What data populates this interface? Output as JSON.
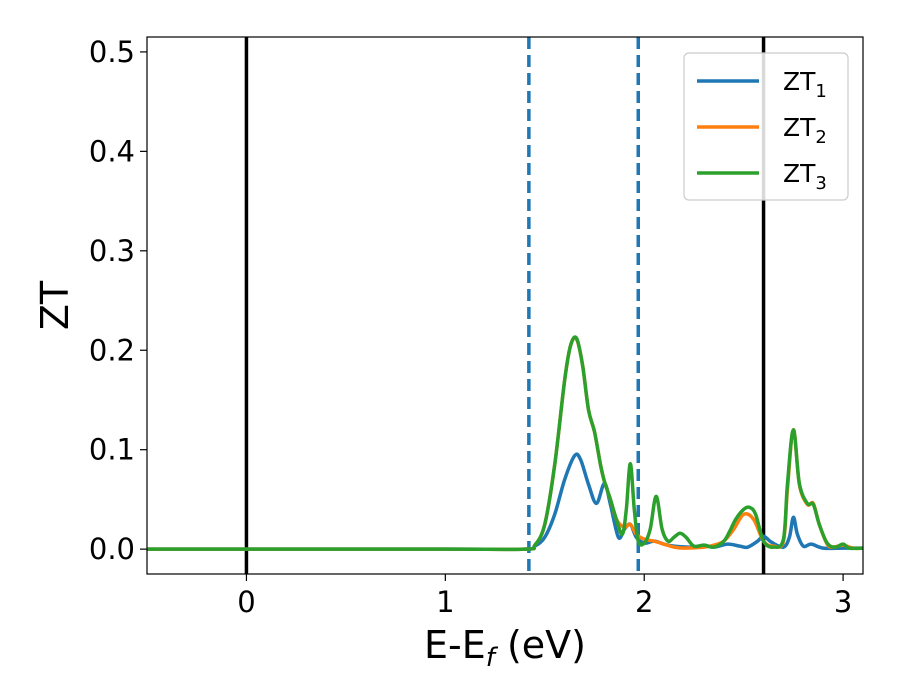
{
  "chart_data": {
    "type": "line",
    "xlabel": "E-E",
    "xlabel_sub": "f",
    "xlabel_unit": " (eV)",
    "ylabel": "ZT",
    "xlim": [
      -0.5,
      3.1
    ],
    "ylim": [
      -0.025,
      0.515
    ],
    "xticks": [
      0,
      1,
      2,
      3
    ],
    "xtick_labels": [
      "0",
      "1",
      "2",
      "3"
    ],
    "yticks": [
      0.0,
      0.1,
      0.2,
      0.3,
      0.4,
      0.5
    ],
    "ytick_labels": [
      "0.0",
      "0.1",
      "0.2",
      "0.3",
      "0.4",
      "0.5"
    ],
    "grid": false,
    "legend_position": "top-right",
    "vertical_lines": [
      {
        "x": 0.0,
        "style": "solid",
        "color": "#000000"
      },
      {
        "x": 1.42,
        "style": "dashed",
        "color": "#1f77b4"
      },
      {
        "x": 1.97,
        "style": "dashed",
        "color": "#1f77b4"
      },
      {
        "x": 2.6,
        "style": "solid",
        "color": "#000000"
      }
    ],
    "series": [
      {
        "name": "ZT",
        "subscript": "1",
        "color": "#1f77b4",
        "points": [
          [
            -0.5,
            0
          ],
          [
            1.0,
            0
          ],
          [
            1.4,
            0
          ],
          [
            1.45,
            0.003
          ],
          [
            1.5,
            0.012
          ],
          [
            1.55,
            0.035
          ],
          [
            1.6,
            0.07
          ],
          [
            1.65,
            0.094
          ],
          [
            1.68,
            0.09
          ],
          [
            1.72,
            0.065
          ],
          [
            1.76,
            0.046
          ],
          [
            1.8,
            0.066
          ],
          [
            1.83,
            0.045
          ],
          [
            1.87,
            0.012
          ],
          [
            1.9,
            0.02
          ],
          [
            1.93,
            0.025
          ],
          [
            1.96,
            0.012
          ],
          [
            2.0,
            0.006
          ],
          [
            2.05,
            0.008
          ],
          [
            2.1,
            0.005
          ],
          [
            2.15,
            0.003
          ],
          [
            2.25,
            0.002
          ],
          [
            2.3,
            0.004
          ],
          [
            2.35,
            0.002
          ],
          [
            2.42,
            0.005
          ],
          [
            2.48,
            0.003
          ],
          [
            2.52,
            0.002
          ],
          [
            2.57,
            0.008
          ],
          [
            2.6,
            0.013
          ],
          [
            2.64,
            0.007
          ],
          [
            2.7,
            0.002
          ],
          [
            2.73,
            0.012
          ],
          [
            2.75,
            0.032
          ],
          [
            2.77,
            0.015
          ],
          [
            2.8,
            0.003
          ],
          [
            2.84,
            0.005
          ],
          [
            2.9,
            0.001
          ],
          [
            3.0,
            0.001
          ],
          [
            3.1,
            0.001
          ]
        ]
      },
      {
        "name": "ZT",
        "subscript": "2",
        "color": "#ff7f0e",
        "points": [
          [
            -0.5,
            0
          ],
          [
            1.0,
            0
          ],
          [
            1.4,
            0
          ],
          [
            1.45,
            0.004
          ],
          [
            1.5,
            0.025
          ],
          [
            1.55,
            0.085
          ],
          [
            1.6,
            0.17
          ],
          [
            1.63,
            0.205
          ],
          [
            1.66,
            0.211
          ],
          [
            1.69,
            0.185
          ],
          [
            1.72,
            0.14
          ],
          [
            1.75,
            0.118
          ],
          [
            1.78,
            0.085
          ],
          [
            1.8,
            0.068
          ],
          [
            1.83,
            0.05
          ],
          [
            1.86,
            0.03
          ],
          [
            1.9,
            0.022
          ],
          [
            1.93,
            0.025
          ],
          [
            1.96,
            0.015
          ],
          [
            2.0,
            0.01
          ],
          [
            2.05,
            0.008
          ],
          [
            2.1,
            0.005
          ],
          [
            2.15,
            0.002
          ],
          [
            2.2,
            0.001
          ],
          [
            2.3,
            0.002
          ],
          [
            2.35,
            0.004
          ],
          [
            2.4,
            0.008
          ],
          [
            2.45,
            0.02
          ],
          [
            2.5,
            0.035
          ],
          [
            2.55,
            0.03
          ],
          [
            2.6,
            0.008
          ],
          [
            2.65,
            0.003
          ],
          [
            2.7,
            0.008
          ],
          [
            2.72,
            0.06
          ],
          [
            2.75,
            0.12
          ],
          [
            2.78,
            0.065
          ],
          [
            2.82,
            0.045
          ],
          [
            2.85,
            0.046
          ],
          [
            2.88,
            0.025
          ],
          [
            2.92,
            0.005
          ],
          [
            2.95,
            0.002
          ],
          [
            3.0,
            0.004
          ],
          [
            3.05,
            0.001
          ],
          [
            3.1,
            0.001
          ]
        ]
      },
      {
        "name": "ZT",
        "subscript": "3",
        "color": "#2ca02c",
        "points": [
          [
            -0.5,
            0
          ],
          [
            1.0,
            0
          ],
          [
            1.4,
            0
          ],
          [
            1.45,
            0.004
          ],
          [
            1.5,
            0.025
          ],
          [
            1.55,
            0.085
          ],
          [
            1.6,
            0.17
          ],
          [
            1.63,
            0.205
          ],
          [
            1.66,
            0.212
          ],
          [
            1.69,
            0.185
          ],
          [
            1.72,
            0.14
          ],
          [
            1.75,
            0.118
          ],
          [
            1.78,
            0.085
          ],
          [
            1.8,
            0.068
          ],
          [
            1.83,
            0.05
          ],
          [
            1.86,
            0.03
          ],
          [
            1.89,
            0.015
          ],
          [
            1.91,
            0.04
          ],
          [
            1.93,
            0.086
          ],
          [
            1.95,
            0.04
          ],
          [
            1.97,
            0.008
          ],
          [
            2.0,
            0.006
          ],
          [
            2.03,
            0.02
          ],
          [
            2.06,
            0.053
          ],
          [
            2.09,
            0.02
          ],
          [
            2.12,
            0.008
          ],
          [
            2.15,
            0.012
          ],
          [
            2.18,
            0.016
          ],
          [
            2.21,
            0.012
          ],
          [
            2.25,
            0.003
          ],
          [
            2.3,
            0.004
          ],
          [
            2.35,
            0.002
          ],
          [
            2.4,
            0.008
          ],
          [
            2.43,
            0.018
          ],
          [
            2.46,
            0.03
          ],
          [
            2.5,
            0.04
          ],
          [
            2.53,
            0.042
          ],
          [
            2.56,
            0.035
          ],
          [
            2.6,
            0.008
          ],
          [
            2.65,
            0.002
          ],
          [
            2.7,
            0.01
          ],
          [
            2.72,
            0.065
          ],
          [
            2.75,
            0.12
          ],
          [
            2.78,
            0.066
          ],
          [
            2.82,
            0.046
          ],
          [
            2.85,
            0.045
          ],
          [
            2.88,
            0.025
          ],
          [
            2.92,
            0.006
          ],
          [
            2.96,
            0.002
          ],
          [
            3.0,
            0.005
          ],
          [
            3.03,
            0.001
          ],
          [
            3.1,
            0.001
          ]
        ]
      }
    ]
  }
}
